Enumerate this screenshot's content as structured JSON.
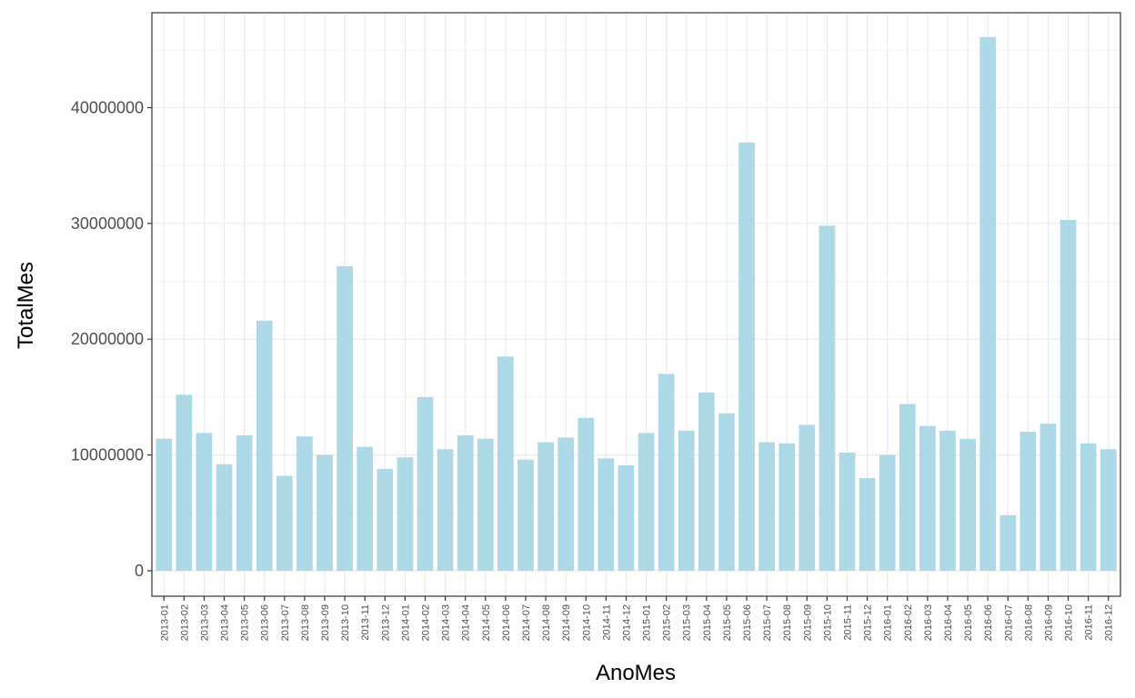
{
  "chart_data": {
    "type": "bar",
    "xlabel": "AnoMes",
    "ylabel": "TotalMes",
    "ylim": [
      -2200000,
      48200000
    ],
    "yticks": [
      0,
      10000000,
      20000000,
      30000000,
      40000000
    ],
    "ytick_labels": [
      "0",
      "10000000",
      "20000000",
      "30000000",
      "40000000"
    ],
    "grid": true,
    "colors": {
      "bar": "#add8e6",
      "panel_border": "#333333",
      "grid_major": "#ebebeb",
      "grid_minor": "#f5f5f5"
    },
    "categories": [
      "2013-01",
      "2013-02",
      "2013-03",
      "2013-04",
      "2013-05",
      "2013-06",
      "2013-07",
      "2013-08",
      "2013-09",
      "2013-10",
      "2013-11",
      "2013-12",
      "2014-01",
      "2014-02",
      "2014-03",
      "2014-04",
      "2014-05",
      "2014-06",
      "2014-07",
      "2014-08",
      "2014-09",
      "2014-10",
      "2014-11",
      "2014-12",
      "2015-01",
      "2015-02",
      "2015-03",
      "2015-04",
      "2015-05",
      "2015-06",
      "2015-07",
      "2015-08",
      "2015-09",
      "2015-10",
      "2015-11",
      "2015-12",
      "2016-01",
      "2016-02",
      "2016-03",
      "2016-04",
      "2016-05",
      "2016-06",
      "2016-07",
      "2016-08",
      "2016-09",
      "2016-10",
      "2016-11",
      "2016-12"
    ],
    "values": [
      11400000,
      15200000,
      11900000,
      9200000,
      11700000,
      21600000,
      8200000,
      11600000,
      10000000,
      26300000,
      10700000,
      8800000,
      9800000,
      15000000,
      10500000,
      11700000,
      11400000,
      18500000,
      9600000,
      11100000,
      11500000,
      13200000,
      9700000,
      9100000,
      11900000,
      17000000,
      12100000,
      15400000,
      13600000,
      37000000,
      11100000,
      11000000,
      12600000,
      29800000,
      10200000,
      8000000,
      10000000,
      14400000,
      12500000,
      12100000,
      11400000,
      46100000,
      4800000,
      12000000,
      12700000,
      30300000,
      11000000,
      10500000
    ]
  }
}
